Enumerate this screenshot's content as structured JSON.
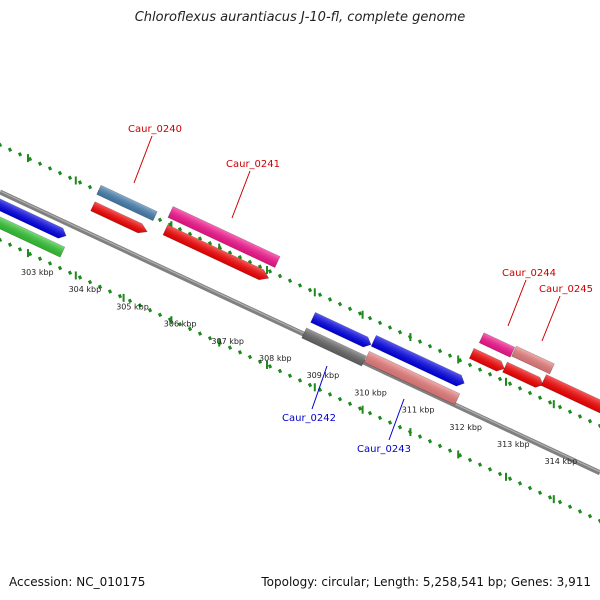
{
  "title": "Chloroflexus aurantiacus J-10-fl, complete genome",
  "footer": {
    "accession": "Accession: NC_010175",
    "summary": "Topology: circular; Length: 5,258,541 bp; Genes: 3,911"
  },
  "colors": {
    "backbone": "#808080",
    "tick_dots": "#1e8a1e",
    "label_red": "#cc0000",
    "label_blue": "#0000cc"
  },
  "ticks": [
    "303 kbp",
    "304 kbp",
    "305 kbp",
    "306 kbp",
    "307 kbp",
    "308 kbp",
    "309 kbp",
    "310 kbp",
    "311 kbp",
    "312 kbp",
    "313 kbp",
    "314 kbp"
  ],
  "features": [
    {
      "id": "blue_left",
      "color": "#0000ee"
    },
    {
      "id": "green_left",
      "color": "#33cc33"
    },
    {
      "id": "Caur_0240_bar",
      "color": "#4682b4"
    },
    {
      "id": "red_a",
      "color": "#ff0000"
    },
    {
      "id": "Caur_0241_bar",
      "color": "#ff1493"
    },
    {
      "id": "red_b",
      "color": "#ff0000"
    },
    {
      "id": "blue_mid",
      "color": "#0000ee"
    },
    {
      "id": "Caur_0242_bar",
      "color": "#696969"
    },
    {
      "id": "Caur_0243_bar_blue",
      "color": "#0000ee"
    },
    {
      "id": "Caur_0243_bar",
      "color": "#f08080"
    },
    {
      "id": "Caur_0244_bar",
      "color": "#ff1493"
    },
    {
      "id": "Caur_0245_bar",
      "color": "#f08080"
    },
    {
      "id": "red_c",
      "color": "#ff0000"
    },
    {
      "id": "red_d",
      "color": "#ff0000"
    },
    {
      "id": "red_e",
      "color": "#ff0000"
    }
  ],
  "labels": [
    {
      "name": "Caur_0240",
      "color": "#cc0000"
    },
    {
      "name": "Caur_0241",
      "color": "#cc0000"
    },
    {
      "name": "Caur_0244",
      "color": "#cc0000"
    },
    {
      "name": "Caur_0245",
      "color": "#cc0000"
    },
    {
      "name": "Caur_0242",
      "color": "#0000cc"
    },
    {
      "name": "Caur_0243",
      "color": "#0000cc"
    }
  ]
}
